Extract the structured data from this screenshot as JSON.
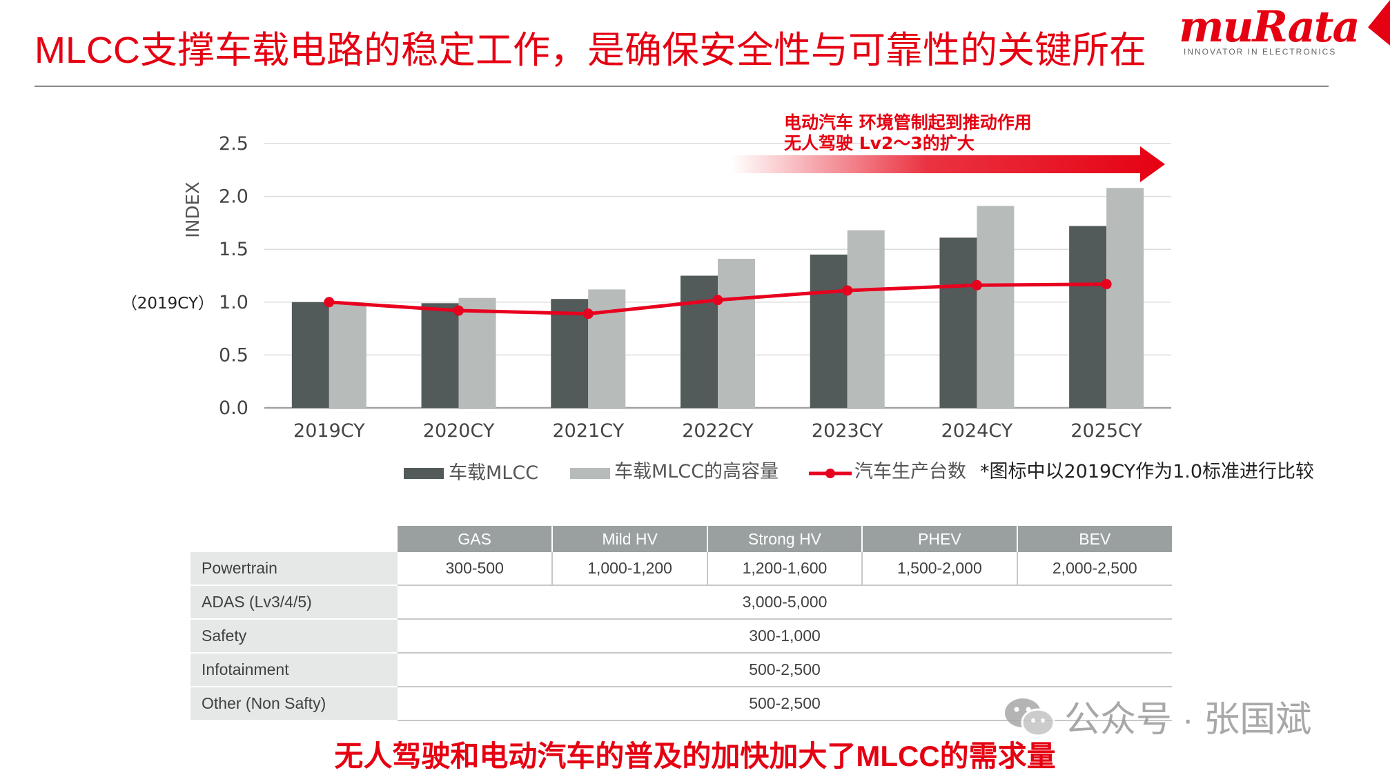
{
  "header": {
    "title": "MLCC支撑车载电路的稳定工作，是确保安全性与可靠性的关键所在",
    "logo": "muRata",
    "logo_tagline": "INNOVATOR IN ELECTRONICS"
  },
  "colors": {
    "accent": "#e50012",
    "bar_dark": "#525a5a",
    "bar_light": "#b7bcbb",
    "table_header": "#9aa0a0"
  },
  "chart_data": {
    "type": "bar",
    "categories": [
      "2019CY",
      "2020CY",
      "2021CY",
      "2022CY",
      "2023CY",
      "2024CY",
      "2025CY"
    ],
    "series": [
      {
        "name": "车载MLCC",
        "type": "bar",
        "values": [
          1.0,
          0.99,
          1.03,
          1.25,
          1.45,
          1.61,
          1.72
        ]
      },
      {
        "name": "车载MLCC的高容量",
        "type": "bar",
        "values": [
          0.99,
          1.04,
          1.12,
          1.41,
          1.68,
          1.91,
          2.08
        ]
      },
      {
        "name": "汽车生产台数",
        "type": "line",
        "values": [
          1.0,
          0.92,
          0.89,
          1.02,
          1.11,
          1.16,
          1.17
        ]
      }
    ],
    "ylabel": "INDEX",
    "ylim": [
      0,
      2.5
    ],
    "yticks": [
      "0.0",
      "0.5",
      "1.0",
      "1.5",
      "2.0",
      "2.5"
    ],
    "baseline_label": "（2019CY）",
    "grid": true,
    "legend_note": "*图标中以2019CY作为1.0标准进行比较",
    "annotation_line1": "电动汽车 环境管制起到推动作用",
    "annotation_line2": "无人驾驶 Lv2～3的扩大"
  },
  "table": {
    "columns": [
      "GAS",
      "Mild HV",
      "Strong HV",
      "PHEV",
      "BEV"
    ],
    "rows": [
      {
        "label": "Powertrain",
        "cells": [
          "300-500",
          "1,000-1,200",
          "1,200-1,600",
          "1,500-2,000",
          "2,000-2,500"
        ]
      },
      {
        "label": "ADAS (Lv3/4/5)",
        "merged": "3,000-5,000"
      },
      {
        "label": "Safety",
        "merged": "300-1,000"
      },
      {
        "label": "Infotainment",
        "merged": "500-2,500"
      },
      {
        "label": "Other (Non Safty)",
        "merged": "500-2,500"
      }
    ]
  },
  "footer": {
    "summary": "无人驾驶和电动汽车的普及的加快加大了MLCC的需求量",
    "watermark": "公众号 · 张国斌"
  }
}
